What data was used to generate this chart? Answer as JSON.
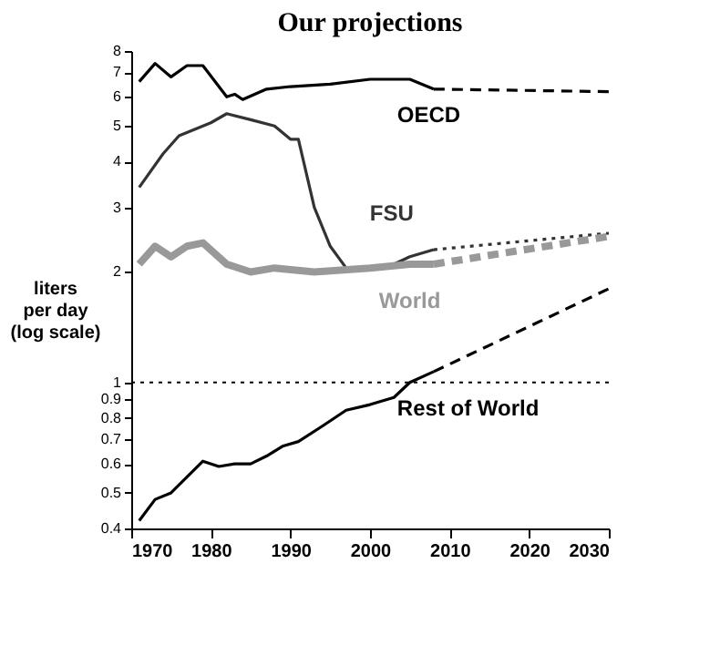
{
  "chart_data": {
    "type": "line",
    "title": "Our projections",
    "ylabel": "liters\nper day\n(log scale)",
    "log": true,
    "marker": "none",
    "xlim": [
      1970,
      2030
    ],
    "xticks": [
      1970,
      1980,
      1990,
      2000,
      2010,
      2020,
      2030
    ],
    "ylim": [
      0.4,
      8
    ],
    "yticks": [
      0.4,
      0.5,
      0.6,
      0.7,
      0.8,
      0.9,
      1,
      2,
      3,
      4,
      5,
      6,
      7,
      8
    ],
    "ref_lines": [
      {
        "axis": "y",
        "value": 1,
        "color": "#000000",
        "line_style": "dotted"
      }
    ],
    "series": [
      {
        "name": "OECD",
        "color": "#000000",
        "line_style": "solid",
        "x": [
          1971,
          1973,
          1975,
          1977,
          1979,
          1982,
          1983,
          1984,
          1987,
          1990,
          1995,
          2000,
          2003,
          2005,
          2008
        ],
        "values": [
          6.6,
          7.4,
          6.8,
          7.3,
          7.3,
          6.0,
          6.1,
          5.9,
          6.3,
          6.4,
          6.5,
          6.7,
          6.7,
          6.7,
          6.3
        ]
      },
      {
        "color": "#000000",
        "line_style": "dashed",
        "x": [
          2008,
          2030
        ],
        "values": [
          6.3,
          6.2
        ]
      },
      {
        "name": "FSU",
        "color": "#333333",
        "line_style": "solid",
        "x": [
          1971,
          1974,
          1976,
          1980,
          1982,
          1985,
          1988,
          1990,
          1991,
          1993,
          1995,
          1997,
          2000,
          2003,
          2005,
          2008
        ],
        "values": [
          3.4,
          4.2,
          4.7,
          5.1,
          5.4,
          5.2,
          5.0,
          4.6,
          4.6,
          3.0,
          2.35,
          2.05,
          2.05,
          2.1,
          2.2,
          2.3
        ]
      },
      {
        "color": "#333333",
        "line_style": "dotted",
        "x": [
          2008,
          2030
        ],
        "values": [
          2.3,
          2.55
        ]
      },
      {
        "name": "World",
        "color": "#999999",
        "line_style": "solid",
        "x": [
          1971,
          1973,
          1975,
          1977,
          1979,
          1982,
          1985,
          1988,
          1993,
          2000,
          2005,
          2008
        ],
        "values": [
          2.1,
          2.35,
          2.2,
          2.35,
          2.4,
          2.1,
          2.0,
          2.05,
          2.0,
          2.05,
          2.1,
          2.1
        ]
      },
      {
        "color": "#999999",
        "line_style": "dashed",
        "x": [
          2008,
          2030
        ],
        "values": [
          2.1,
          2.5
        ]
      },
      {
        "name": "Rest of World",
        "color": "#000000",
        "line_style": "solid",
        "x": [
          1971,
          1973,
          1975,
          1979,
          1981,
          1983,
          1985,
          1987,
          1989,
          1991,
          1994,
          1997,
          2000,
          2003,
          2005,
          2008
        ],
        "values": [
          0.42,
          0.48,
          0.5,
          0.61,
          0.59,
          0.6,
          0.6,
          0.63,
          0.67,
          0.69,
          0.76,
          0.84,
          0.87,
          0.91,
          1.0,
          1.07
        ]
      },
      {
        "color": "#000000",
        "line_style": "dashed",
        "x": [
          2008,
          2030
        ],
        "values": [
          1.07,
          1.8
        ]
      }
    ]
  }
}
